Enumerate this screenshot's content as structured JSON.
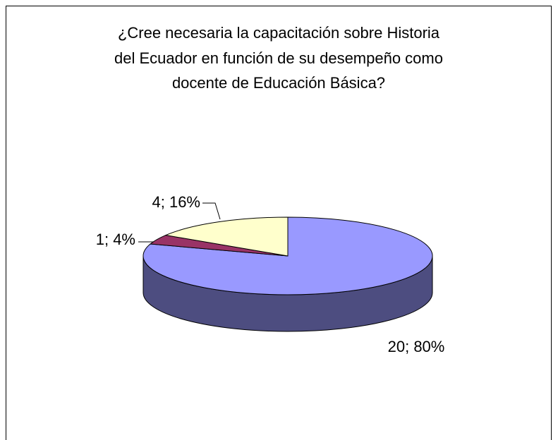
{
  "chart_data": {
    "type": "pie3d",
    "title": [
      "¿Cree necesaria la capacitación sobre Historia",
      "del Ecuador en función de su desempeño como",
      "docente de Educación Básica?"
    ],
    "values": [
      20,
      1,
      4
    ],
    "value_labels": [
      "20; 80%",
      "1; 4%",
      "4; 16%"
    ],
    "colors": [
      "#9999ff",
      "#993366",
      "#ffffcc"
    ]
  }
}
